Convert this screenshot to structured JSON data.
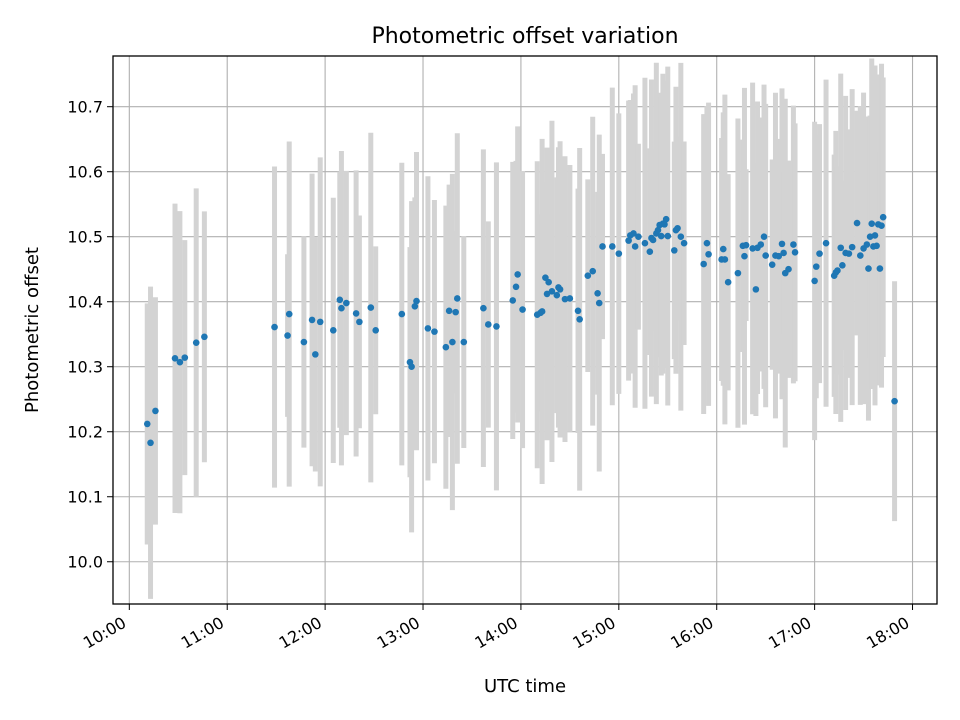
{
  "chart_data": {
    "type": "scatter",
    "title": "Photometric offset variation",
    "xlabel": "UTC time",
    "ylabel": "Photometric offset",
    "xlim": [
      "09:50",
      "18:15"
    ],
    "ylim": [
      9.935,
      10.778
    ],
    "x_ticks": [
      "10:00",
      "11:00",
      "12:00",
      "13:00",
      "14:00",
      "15:00",
      "16:00",
      "17:00",
      "18:00"
    ],
    "y_ticks": [
      "10.0",
      "10.1",
      "10.2",
      "10.3",
      "10.4",
      "10.5",
      "10.6",
      "10.7"
    ],
    "grid": true,
    "marker_color": "#1f77b4",
    "errorbar_color": "#d3d3d3",
    "series": [
      {
        "x": [
          "10:11",
          "10:13",
          "10:16",
          "10:28",
          "10:31",
          "10:34",
          "10:41",
          "10:46",
          "11:29",
          "11:37",
          "11:38",
          "11:47",
          "11:52",
          "11:54",
          "11:57",
          "12:05",
          "12:09",
          "12:10",
          "12:13",
          "12:19",
          "12:21",
          "12:28",
          "12:31",
          "12:47",
          "12:52",
          "12:53",
          "12:55",
          "12:56",
          "13:03",
          "13:07",
          "13:14",
          "13:16",
          "13:18",
          "13:20",
          "13:21",
          "13:25",
          "13:37",
          "13:40",
          "13:45",
          "13:55",
          "13:57",
          "13:58",
          "14:01",
          "14:10",
          "14:12",
          "14:13",
          "14:15",
          "14:16",
          "14:17",
          "14:19",
          "14:22",
          "14:23",
          "14:24",
          "14:27",
          "14:30",
          "14:35",
          "14:36",
          "14:41",
          "14:44",
          "14:47",
          "14:48",
          "14:50",
          "14:56",
          "15:00",
          "15:06",
          "15:07",
          "15:09",
          "15:10",
          "15:12",
          "15:16",
          "15:19",
          "15:20",
          "15:21",
          "15:23",
          "15:24",
          "15:25",
          "15:26",
          "15:27",
          "15:28",
          "15:29",
          "15:30",
          "15:34",
          "15:35",
          "15:36",
          "15:38",
          "15:40",
          "15:52",
          "15:54",
          "15:55",
          "16:03",
          "16:04",
          "16:05",
          "16:07",
          "16:13",
          "16:16",
          "16:17",
          "16:18",
          "16:22",
          "16:24",
          "16:25",
          "16:27",
          "16:29",
          "16:30",
          "16:34",
          "16:36",
          "16:38",
          "16:40",
          "16:41",
          "16:42",
          "16:44",
          "16:47",
          "16:48",
          "17:00",
          "17:01",
          "17:03",
          "17:07",
          "17:12",
          "17:13",
          "17:14",
          "17:16",
          "17:17",
          "17:19",
          "17:21",
          "17:23",
          "17:26",
          "17:28",
          "17:30",
          "17:32",
          "17:33",
          "17:34",
          "17:35",
          "17:36",
          "17:37",
          "17:38",
          "17:39",
          "17:40",
          "17:41",
          "17:42",
          "17:49"
        ],
        "y": [
          10.212,
          10.183,
          10.232,
          10.313,
          10.307,
          10.314,
          10.337,
          10.346,
          10.361,
          10.348,
          10.381,
          10.338,
          10.372,
          10.319,
          10.369,
          10.356,
          10.403,
          10.39,
          10.398,
          10.382,
          10.369,
          10.391,
          10.356,
          10.381,
          10.307,
          10.3,
          10.393,
          10.401,
          10.359,
          10.354,
          10.33,
          10.386,
          10.338,
          10.384,
          10.405,
          10.338,
          10.39,
          10.365,
          10.362,
          10.402,
          10.423,
          10.442,
          10.388,
          10.38,
          10.383,
          10.385,
          10.437,
          10.412,
          10.43,
          10.416,
          10.41,
          10.422,
          10.419,
          10.404,
          10.405,
          10.386,
          10.373,
          10.44,
          10.447,
          10.413,
          10.398,
          10.485,
          10.485,
          10.474,
          10.494,
          10.502,
          10.505,
          10.485,
          10.5,
          10.49,
          10.477,
          10.498,
          10.495,
          10.505,
          10.51,
          10.518,
          10.501,
          10.52,
          10.519,
          10.527,
          10.501,
          10.479,
          10.51,
          10.513,
          10.5,
          10.49,
          10.458,
          10.49,
          10.473,
          10.465,
          10.481,
          10.465,
          10.43,
          10.444,
          10.486,
          10.47,
          10.487,
          10.482,
          10.419,
          10.483,
          10.488,
          10.5,
          10.471,
          10.457,
          10.471,
          10.47,
          10.489,
          10.475,
          10.444,
          10.45,
          10.488,
          10.476,
          10.432,
          10.454,
          10.474,
          10.49,
          10.44,
          10.445,
          10.448,
          10.483,
          10.456,
          10.475,
          10.474,
          10.484,
          10.521,
          10.471,
          10.482,
          10.488,
          10.451,
          10.5,
          10.52,
          10.485,
          10.502,
          10.486,
          10.519,
          10.451,
          10.517,
          10.53,
          10.247
        ]
      }
    ]
  }
}
